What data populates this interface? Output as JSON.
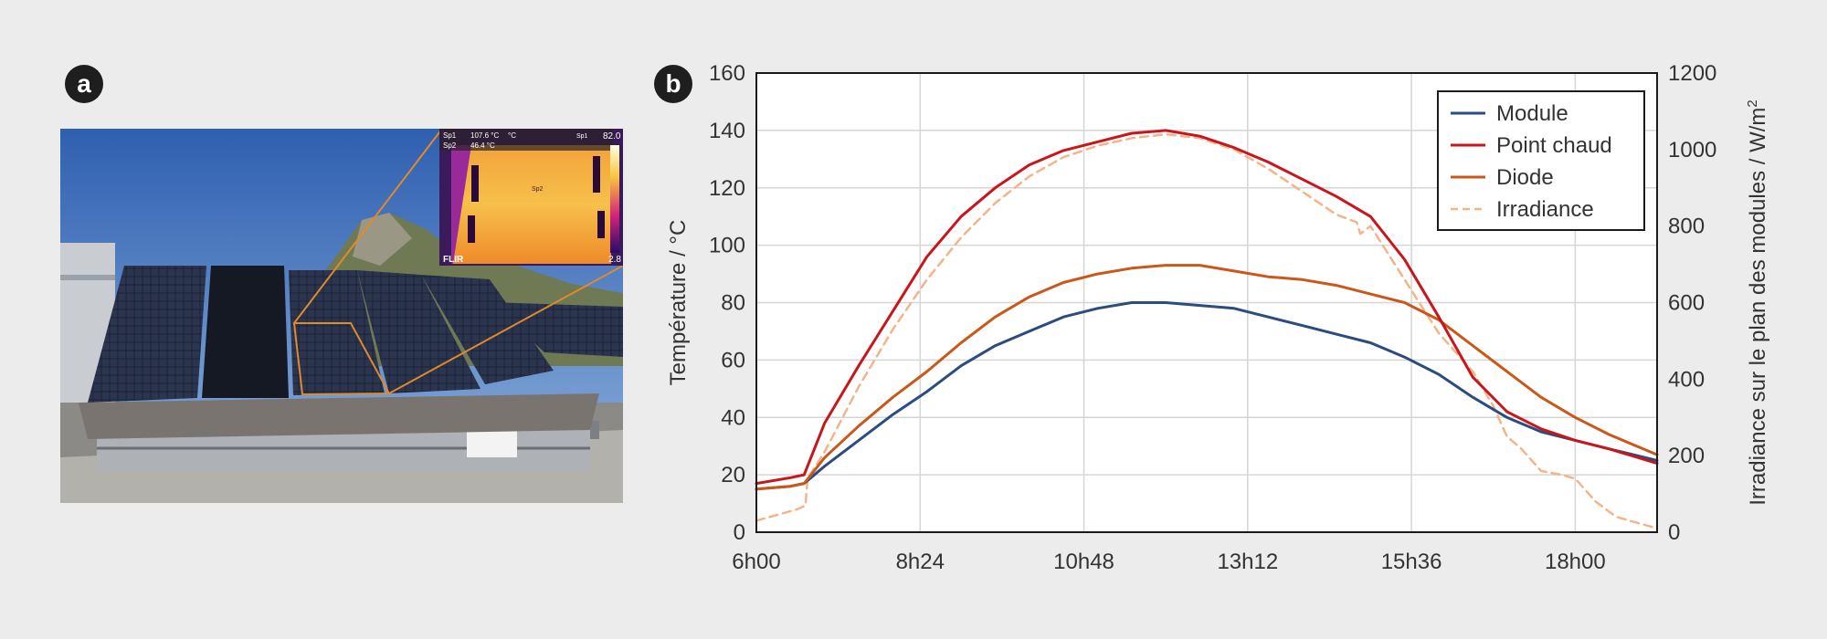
{
  "panels": {
    "a": "a",
    "b": "b"
  },
  "photo": {
    "thermal_readouts": [
      {
        "label": "Sp1",
        "value": "107.6 °C"
      },
      {
        "label": "Sp2",
        "value": "46.4 °C"
      }
    ],
    "thermal_unit": "°C",
    "thermal_marker_label": "Sp1",
    "thermal_spot_label": "Sp2",
    "thermal_scale_max": "82.0",
    "thermal_scale_min": "2.8",
    "camera_brand": "FLIR"
  },
  "colors": {
    "module": "#2b4c7e",
    "point_chaud": "#c8161d",
    "diode": "#c9581a",
    "irradiance": "#f4b48a"
  },
  "chart_data": {
    "type": "line",
    "xlabel": "",
    "ylabel": "Température / °C",
    "y2label": "Irradiance sur le plan des modules / W/m",
    "y2label_sup": "2",
    "x_ticks": [
      "6h00",
      "8h24",
      "10h48",
      "13h12",
      "15h36",
      "18h00"
    ],
    "x_range_hours": [
      6,
      19.2
    ],
    "ylim": [
      0,
      160
    ],
    "y_ticks": [
      0,
      20,
      40,
      60,
      80,
      100,
      120,
      140,
      160
    ],
    "y2lim": [
      0,
      1200
    ],
    "y2_ticks": [
      0,
      200,
      400,
      600,
      800,
      1000,
      1200
    ],
    "grid": true,
    "legend_position": "top-right",
    "series": [
      {
        "name": "Module",
        "axis": "left",
        "style": "solid",
        "x": [
          6.0,
          6.5,
          6.7,
          7.0,
          7.5,
          8.0,
          8.5,
          9.0,
          9.5,
          10.0,
          10.5,
          11.0,
          11.5,
          12.0,
          12.5,
          13.0,
          13.5,
          14.0,
          14.5,
          15.0,
          15.5,
          16.0,
          16.5,
          17.0,
          17.5,
          18.0,
          18.5,
          19.2
        ],
        "y": [
          15,
          16,
          17,
          23,
          32,
          41,
          49,
          58,
          65,
          70,
          75,
          78,
          80,
          80,
          79,
          78,
          75,
          72,
          69,
          66,
          61,
          55,
          47,
          40,
          35,
          32,
          29,
          25
        ]
      },
      {
        "name": "Point chaud",
        "axis": "left",
        "style": "solid",
        "x": [
          6.0,
          6.5,
          6.7,
          7.0,
          7.5,
          8.0,
          8.5,
          9.0,
          9.5,
          10.0,
          10.5,
          11.0,
          11.5,
          12.0,
          12.5,
          13.0,
          13.5,
          14.0,
          14.5,
          15.0,
          15.5,
          16.0,
          16.5,
          17.0,
          17.5,
          18.0,
          18.5,
          19.2
        ],
        "y": [
          17,
          19,
          20,
          38,
          58,
          77,
          96,
          110,
          120,
          128,
          133,
          136,
          139,
          140,
          138,
          134,
          129,
          123,
          117,
          110,
          95,
          75,
          54,
          42,
          36,
          32,
          29,
          24
        ]
      },
      {
        "name": "Diode",
        "axis": "left",
        "style": "solid",
        "x": [
          6.0,
          6.5,
          6.7,
          7.0,
          7.5,
          8.0,
          8.5,
          9.0,
          9.5,
          10.0,
          10.5,
          11.0,
          11.5,
          12.0,
          12.5,
          13.0,
          13.5,
          14.0,
          14.5,
          15.0,
          15.5,
          16.0,
          16.5,
          17.0,
          17.5,
          18.0,
          18.5,
          19.2
        ],
        "y": [
          15,
          16,
          17,
          26,
          37,
          47,
          56,
          66,
          75,
          82,
          87,
          90,
          92,
          93,
          93,
          91,
          89,
          88,
          86,
          83,
          80,
          74,
          65,
          56,
          47,
          40,
          34,
          27
        ]
      },
      {
        "name": "Irradiance",
        "axis": "right",
        "style": "dashed",
        "x": [
          6.0,
          6.6,
          6.72,
          6.75,
          7.0,
          7.5,
          8.0,
          8.5,
          9.0,
          9.5,
          10.0,
          10.5,
          11.0,
          11.5,
          12.0,
          12.5,
          13.0,
          13.5,
          14.0,
          14.5,
          14.8,
          14.85,
          15.0,
          15.5,
          16.0,
          16.5,
          16.8,
          17.0,
          17.2,
          17.5,
          17.8,
          18.0,
          18.3,
          18.6,
          19.2
        ],
        "y": [
          30,
          60,
          70,
          140,
          210,
          380,
          530,
          660,
          770,
          860,
          930,
          980,
          1010,
          1030,
          1040,
          1030,
          1000,
          950,
          890,
          830,
          810,
          780,
          800,
          660,
          520,
          420,
          330,
          250,
          220,
          160,
          150,
          140,
          80,
          40,
          10
        ]
      }
    ]
  }
}
